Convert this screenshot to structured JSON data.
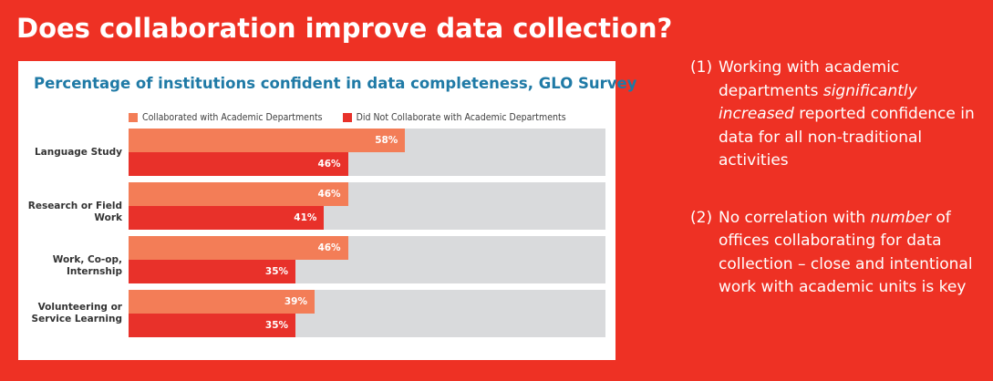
{
  "slide": {
    "title": "Does collaboration improve data collection?"
  },
  "chart_data": {
    "type": "bar",
    "orientation": "horizontal",
    "title": "Percentage of institutions confident in data completeness, GLO Survey",
    "categories": [
      "Language Study",
      "Research or Field Work",
      "Work, Co-op, Internship",
      "Volunteering or Service Learning"
    ],
    "category_lines": [
      [
        "Language Study"
      ],
      [
        "Research or Field Work"
      ],
      [
        "Work, Co-op, Internship"
      ],
      [
        "Volunteering or",
        "Service Learning"
      ]
    ],
    "series": [
      {
        "name": "Collaborated with Academic Departments",
        "values": [
          58,
          46,
          46,
          39
        ],
        "labels": [
          "58%",
          "46%",
          "46%",
          "39%"
        ],
        "color": "#f37d57"
      },
      {
        "name": "Did Not Collaborate with Academic Departments",
        "values": [
          46,
          41,
          35,
          35
        ],
        "labels": [
          "46%",
          "41%",
          "35%",
          "35%"
        ],
        "color": "#e8312a"
      }
    ],
    "xlim": [
      0,
      100
    ],
    "track_color": "#d9dadc",
    "legend_position": "top",
    "grid": false
  },
  "notes": [
    {
      "number": "(1)",
      "segments": [
        {
          "text": "Working with academic departments ",
          "italic": false
        },
        {
          "text": "significantly increased",
          "italic": true
        },
        {
          "text": " reported confidence in data for all non-traditional activities",
          "italic": false
        }
      ]
    },
    {
      "number": "(2)",
      "segments": [
        {
          "text": "No correlation with ",
          "italic": false
        },
        {
          "text": "number",
          "italic": true
        },
        {
          "text": " of offices collaborating for data collection – close and intentional work with academic units is key",
          "italic": false
        }
      ]
    }
  ],
  "colors": {
    "background": "#ee3124",
    "title_text": "#1f7aa6",
    "card": "#ffffff"
  }
}
